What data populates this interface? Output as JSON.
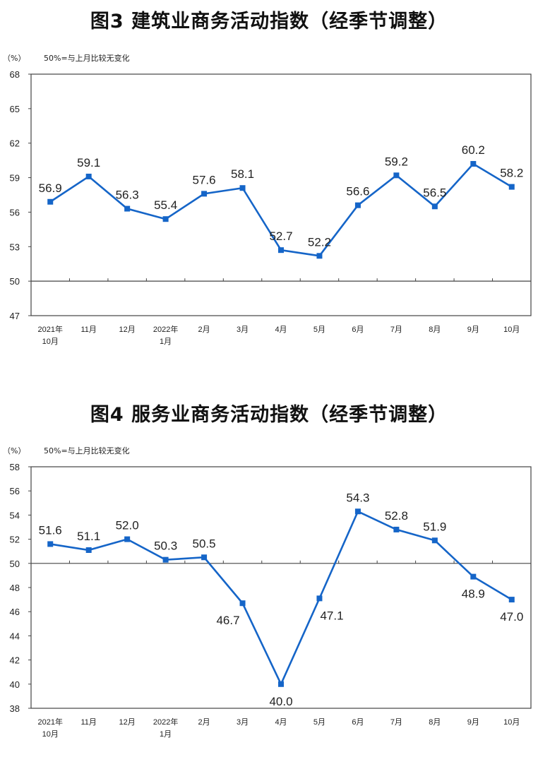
{
  "chart_data": [
    {
      "type": "line",
      "title": "图3  建筑业商务活动指数（经季节调整）",
      "unit_label": "（%）",
      "note": "50%=与上月比较无变化",
      "xlabel": "",
      "ylabel": "%",
      "ylim": [
        47,
        68
      ],
      "yticks": [
        68,
        65,
        62,
        59,
        56,
        53,
        50,
        47
      ],
      "reference_line": 50,
      "categories": [
        [
          "2021年",
          "10月"
        ],
        [
          "11月"
        ],
        [
          "12月"
        ],
        [
          "2022年",
          "1月"
        ],
        [
          "2月"
        ],
        [
          "3月"
        ],
        [
          "4月"
        ],
        [
          "5月"
        ],
        [
          "6月"
        ],
        [
          "7月"
        ],
        [
          "8月"
        ],
        [
          "9月"
        ],
        [
          "10月"
        ]
      ],
      "values": [
        56.9,
        59.1,
        56.3,
        55.4,
        57.6,
        58.1,
        52.7,
        52.2,
        56.6,
        59.2,
        56.5,
        60.2,
        58.2
      ],
      "labels": [
        "56.9",
        "59.1",
        "56.3",
        "55.4",
        "57.6",
        "58.1",
        "52.7",
        "52.2",
        "56.6",
        "59.2",
        "56.5",
        "60.2",
        "58.2"
      ],
      "label_pos": [
        "above",
        "above",
        "above",
        "above",
        "above",
        "above",
        "above",
        "above",
        "above",
        "above",
        "above",
        "above",
        "above"
      ],
      "grid": false,
      "line_color": "#1565C8"
    },
    {
      "type": "line",
      "title": "图4  服务业商务活动指数（经季节调整）",
      "unit_label": "（%）",
      "note": "50%=与上月比较无变化",
      "xlabel": "",
      "ylabel": "%",
      "ylim": [
        38,
        58
      ],
      "yticks": [
        58,
        56,
        54,
        52,
        50,
        48,
        46,
        44,
        42,
        40,
        38
      ],
      "reference_line": 50,
      "categories": [
        [
          "2021年",
          "10月"
        ],
        [
          "11月"
        ],
        [
          "12月"
        ],
        [
          "2022年",
          "1月"
        ],
        [
          "2月"
        ],
        [
          "3月"
        ],
        [
          "4月"
        ],
        [
          "5月"
        ],
        [
          "6月"
        ],
        [
          "7月"
        ],
        [
          "8月"
        ],
        [
          "9月"
        ],
        [
          "10月"
        ]
      ],
      "values": [
        51.6,
        51.1,
        52.0,
        50.3,
        50.5,
        46.7,
        40.0,
        47.1,
        54.3,
        52.8,
        51.9,
        48.9,
        47.0
      ],
      "labels": [
        "51.6",
        "51.1",
        "52.0",
        "50.3",
        "50.5",
        "46.7",
        "40.0",
        "47.1",
        "54.3",
        "52.8",
        "51.9",
        "48.9",
        "47.0"
      ],
      "label_pos": [
        "above",
        "above",
        "above",
        "above",
        "above",
        "below-left",
        "below",
        "below-right",
        "above",
        "above",
        "above",
        "below",
        "below"
      ],
      "grid": false,
      "line_color": "#1565C8"
    }
  ]
}
